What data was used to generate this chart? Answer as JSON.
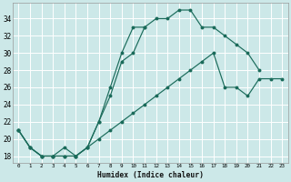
{
  "xlabel": "Humidex (Indice chaleur)",
  "bg_color": "#cce8e8",
  "grid_color": "#ffffff",
  "line_color": "#1a6b5a",
  "xlim": [
    -0.5,
    23.5
  ],
  "ylim": [
    17.2,
    35.8
  ],
  "xticks": [
    0,
    1,
    2,
    3,
    4,
    5,
    6,
    7,
    8,
    9,
    10,
    11,
    12,
    13,
    14,
    15,
    16,
    17,
    18,
    19,
    20,
    21,
    22,
    23
  ],
  "yticks": [
    18,
    20,
    22,
    24,
    26,
    28,
    30,
    32,
    34
  ],
  "line1_x": [
    0,
    1,
    2,
    3,
    4,
    5,
    6,
    7,
    8,
    9,
    10,
    11,
    12,
    13,
    14,
    15,
    16,
    17,
    18,
    19,
    20,
    21
  ],
  "line1_y": [
    21,
    19,
    18,
    18,
    19,
    18,
    19,
    22,
    26,
    30,
    33,
    33,
    34,
    34,
    35,
    35,
    33,
    33,
    32,
    31,
    30,
    28
  ],
  "line2_x": [
    0,
    1,
    2,
    3,
    4,
    5,
    6,
    7,
    8,
    9,
    10,
    11
  ],
  "line2_y": [
    21,
    19,
    18,
    18,
    18,
    18,
    19,
    22,
    25,
    29,
    30,
    33
  ],
  "line3_x": [
    0,
    1,
    2,
    3,
    4,
    5,
    6,
    7,
    8,
    9,
    10,
    11,
    12,
    13,
    14,
    15,
    16,
    17,
    18,
    19,
    20,
    21,
    22,
    23
  ],
  "line3_y": [
    21,
    19,
    18,
    18,
    18,
    18,
    19,
    20,
    21,
    22,
    23,
    24,
    25,
    26,
    27,
    28,
    29,
    30,
    26,
    26,
    25,
    27,
    27,
    27
  ]
}
